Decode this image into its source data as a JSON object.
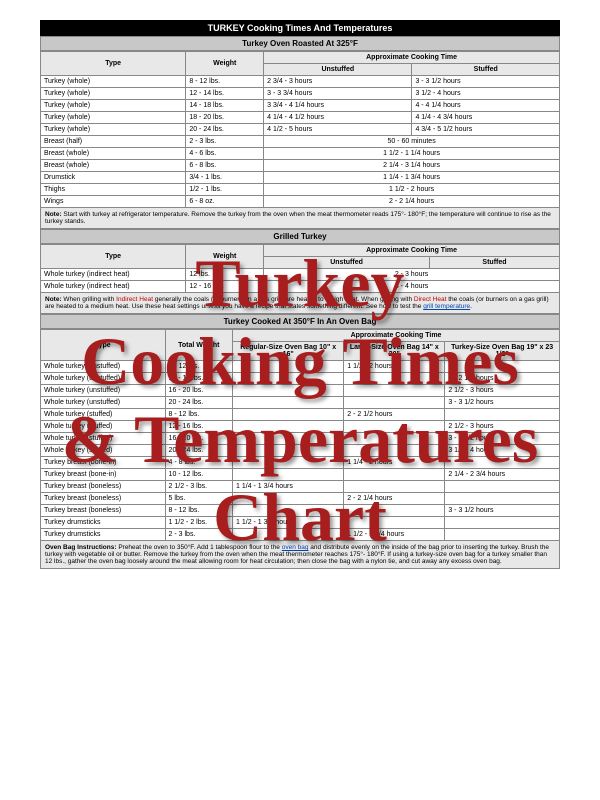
{
  "overlay": {
    "line1": "Turkey",
    "line2": "Cooking Times",
    "line3": "& Temperatures",
    "line4": "Chart",
    "color": "#a81e1e",
    "fontsize": 68
  },
  "main_title": "TURKEY Cooking Times And Temperatures",
  "section1": {
    "title": "Turkey Oven Roasted At 325°F",
    "type_header": "Type",
    "weight_header": "Weight",
    "time_header": "Approximate Cooking Time",
    "unstuffed_header": "Unstuffed",
    "stuffed_header": "Stuffed",
    "rows": [
      {
        "type": "Turkey (whole)",
        "weight": "8 - 12 lbs.",
        "unstuffed": "2 3/4 - 3 hours",
        "stuffed": "3 - 3 1/2 hours"
      },
      {
        "type": "Turkey (whole)",
        "weight": "12 - 14 lbs.",
        "unstuffed": "3 - 3 3/4 hours",
        "stuffed": "3 1/2 - 4 hours"
      },
      {
        "type": "Turkey (whole)",
        "weight": "14 - 18 lbs.",
        "unstuffed": "3 3/4 - 4 1/4 hours",
        "stuffed": "4 - 4 1/4 hours"
      },
      {
        "type": "Turkey (whole)",
        "weight": "18 - 20 lbs.",
        "unstuffed": "4 1/4 - 4 1/2 hours",
        "stuffed": "4 1/4 - 4 3/4 hours"
      },
      {
        "type": "Turkey (whole)",
        "weight": "20 - 24 lbs.",
        "unstuffed": "4 1/2 - 5 hours",
        "stuffed": "4 3/4 - 5 1/2 hours"
      },
      {
        "type": "Breast (half)",
        "weight": "2 - 3 lbs.",
        "unstuffed": "50 - 60 minutes",
        "stuffed": ""
      },
      {
        "type": "Breast (whole)",
        "weight": "4 - 6 lbs.",
        "unstuffed": "1 1/2 - 1 1/4 hours",
        "stuffed": ""
      },
      {
        "type": "Breast (whole)",
        "weight": "6 - 8 lbs.",
        "unstuffed": "2 1/4 - 3 1/4 hours",
        "stuffed": ""
      },
      {
        "type": "Drumstick",
        "weight": "3/4 - 1 lbs.",
        "unstuffed": "1 1/4 - 1 3/4 hours",
        "stuffed": ""
      },
      {
        "type": "Thighs",
        "weight": "1/2 - 1 lbs.",
        "unstuffed": "1 1/2 - 2 hours",
        "stuffed": ""
      },
      {
        "type": "Wings",
        "weight": "6 - 8 oz.",
        "unstuffed": "2 - 2 1/4 hours",
        "stuffed": ""
      }
    ],
    "note_label": "Note:",
    "note_text": " Start with turkey at refrigerator temperature. Remove the turkey from the oven when the meat thermometer reads 175°- 180°F; the temperature will continue to rise as the turkey stands."
  },
  "section2": {
    "title": "Grilled Turkey",
    "type_header": "Type",
    "weight_header": "Weight",
    "time_header": "Approximate Cooking Time",
    "unstuffed_header": "Unstuffed",
    "stuffed_header": "Stuffed",
    "rows": [
      {
        "type": "Whole turkey (indirect heat)",
        "weight": "12 lbs.",
        "unstuffed": "2 - 3 hours",
        "stuffed": ""
      },
      {
        "type": "Whole turkey (indirect heat)",
        "weight": "12 - 16 lbs.",
        "unstuffed": "3 - 4 hours",
        "stuffed": ""
      }
    ],
    "note_label": "Note:",
    "note_pre": " When grilling with ",
    "note_indirect": "Indirect Heat",
    "note_mid1": " generally the coals (or burners on a gas grill) are heated to a high heat. When grilling with ",
    "note_direct": "Direct Heat",
    "note_mid2": " the coals (or burners on a gas grill) are heated to a medium heat. Use these heat settings unless you have a recipe that states something different. See how to test the ",
    "note_link": "grill temperature",
    "note_post": "."
  },
  "section3": {
    "title": "Turkey Cooked At 350°F In An Oven Bag",
    "type_header": "Type",
    "weight_header": "Total Weight",
    "time_header": "Approximate Cooking Time",
    "reg_header": "Regular-Size Oven Bag 10\" x 16\"",
    "large_header": "Large-Size Oven Bag 14\" x 20\"",
    "turkey_header": "Turkey-Size Oven Bag 19\" x 23 1/2\"",
    "rows": [
      {
        "type": "Whole turkey (unstuffed)",
        "weight": "8 - 12 lbs.",
        "reg": "",
        "large": "1 1/2 - 2 hours",
        "tk": ""
      },
      {
        "type": "Whole turkey (unstuffed)",
        "weight": "12 - 16 lbs.",
        "reg": "",
        "large": "",
        "tk": "2 - 2 1/2 hours"
      },
      {
        "type": "Whole turkey (unstuffed)",
        "weight": "16 - 20 lbs.",
        "reg": "",
        "large": "",
        "tk": "2 1/2 - 3 hours"
      },
      {
        "type": "Whole turkey (unstuffed)",
        "weight": "20 - 24 lbs.",
        "reg": "",
        "large": "",
        "tk": "3 - 3 1/2 hours"
      },
      {
        "type": "Whole turkey (stuffed)",
        "weight": "8 - 12 lbs.",
        "reg": "",
        "large": "2 - 2 1/2 hours",
        "tk": ""
      },
      {
        "type": "Whole turkey (stuffed)",
        "weight": "12 - 16 lbs.",
        "reg": "",
        "large": "",
        "tk": "2 1/2 - 3 hours"
      },
      {
        "type": "Whole turkey (stuffed)",
        "weight": "16 - 20 lbs.",
        "reg": "",
        "large": "",
        "tk": "3 - 3 1/2 hours"
      },
      {
        "type": "Whole turkey (stuffed)",
        "weight": "20 - 24 lbs.",
        "reg": "",
        "large": "",
        "tk": "3 1/2 - 4 hours"
      },
      {
        "type": "Turkey breast (bone-in)",
        "weight": "4 - 8 lbs.",
        "reg": "",
        "large": "1 1/4 - 2 hours",
        "tk": ""
      },
      {
        "type": "Turkey breast (bone-in)",
        "weight": "10 - 12 lbs.",
        "reg": "",
        "large": "",
        "tk": "2 1/4 - 2 3/4 hours"
      },
      {
        "type": "Turkey breast (boneless)",
        "weight": "2 1/2 - 3 lbs.",
        "reg": "1 1/4 - 1 3/4 hours",
        "large": "",
        "tk": ""
      },
      {
        "type": "Turkey breast (boneless)",
        "weight": "5 lbs.",
        "reg": "",
        "large": "2 - 2 1/4 hours",
        "tk": ""
      },
      {
        "type": "Turkey breast (boneless)",
        "weight": "8 - 12 lbs.",
        "reg": "",
        "large": "",
        "tk": "3 - 3 1/2 hours"
      },
      {
        "type": "Turkey drumsticks",
        "weight": "1 1/2 - 2 lbs.",
        "reg": "1 1/2 - 1 3/4 hours",
        "large": "",
        "tk": ""
      },
      {
        "type": "Turkey drumsticks",
        "weight": "2 - 3 lbs.",
        "reg": "",
        "large": "1 1/2 - 1 3/4 hours",
        "tk": ""
      }
    ],
    "note_label": "Oven Bag Instructions:",
    "note_pre": " Preheat the oven to 350°F. Add 1 tablespoon flour to the ",
    "note_link": "oven bag",
    "note_post": " and distribute evenly on the inside of the bag prior to inserting the turkey. Brush the turkey with vegetable oil or butter. Remove the turkey from the oven when the meat thermometer reaches 175°- 180°F. If using a turkey-size oven bag for a turkey smaller than 12 lbs., gather the oven bag loosely around the meat allowing room for heat circulation; then close the bag with a nylon tie, and cut away any excess oven bag."
  }
}
